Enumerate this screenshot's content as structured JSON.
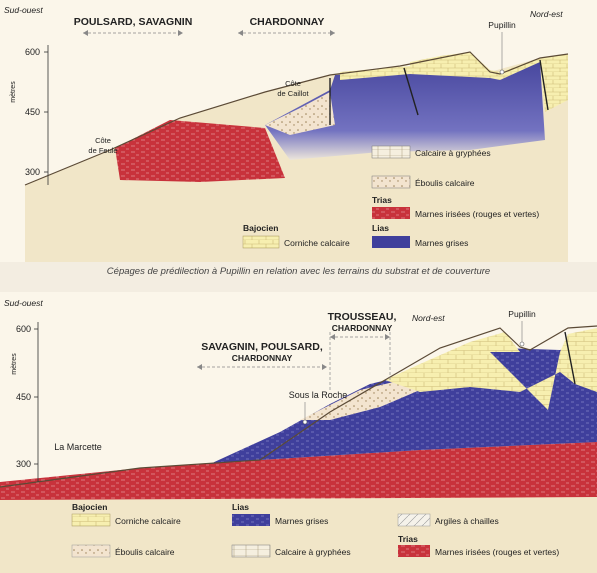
{
  "caption": "Cépages de prédilection à Pupillin en relation avec les terrains du substrat et de couverture",
  "colors": {
    "background": "#fbf6ea",
    "calcaire": "#f7efb0",
    "marnes_grises": "#3f3f9c",
    "marnes_irisees": "#c8323b",
    "eboulis": "#f3e4cf",
    "ground": "#f1e6c8"
  },
  "top": {
    "direction_left": "Sud-ouest",
    "direction_right": "Nord-est",
    "axis_unit": "mètres",
    "ticks": [
      "600",
      "450",
      "300"
    ],
    "grape_left": "POULSARD, SAVAGNIN",
    "grape_right": "CHARDONNAY",
    "place_pupillin": "Pupillin",
    "place_caillot": [
      "Côte",
      "de Caillot"
    ],
    "place_feule": [
      "Côte",
      "de Feule"
    ],
    "legend": {
      "calcaire_gryphees": "Calcaire à gryphées",
      "eboulis": "Éboulis calcaire",
      "trias_heading": "Trias",
      "marnes_irisees": "Marnes irisées (rouges et vertes)",
      "bajocien_heading": "Bajocien",
      "corniche": "Corniche calcaire",
      "lias_heading": "Lias",
      "marnes_grises": "Marnes grises"
    }
  },
  "bottom": {
    "direction_left": "Sud-ouest",
    "direction_right": "Nord-est",
    "axis_unit": "mètres",
    "ticks": [
      "600",
      "450",
      "300"
    ],
    "grape_left_line1": "SAVAGNIN, POULSARD,",
    "grape_left_line2": "CHARDONNAY",
    "grape_right_line1": "TROUSSEAU,",
    "grape_right_line2": "CHARDONNAY",
    "place_pupillin": "Pupillin",
    "place_roche": "Sous la Roche",
    "place_marcette": "La Marcette",
    "legend": {
      "bajocien_heading": "Bajocien",
      "corniche": "Corniche calcaire",
      "lias_heading": "Lias",
      "marnes_grises": "Marnes grises",
      "argiles": "Argiles à chailles",
      "eboulis": "Éboulis calcaire",
      "calcaire_gryphees": "Calcaire à gryphées",
      "trias_heading": "Trias",
      "marnes_irisees": "Marnes irisées (rouges et vertes)"
    }
  }
}
